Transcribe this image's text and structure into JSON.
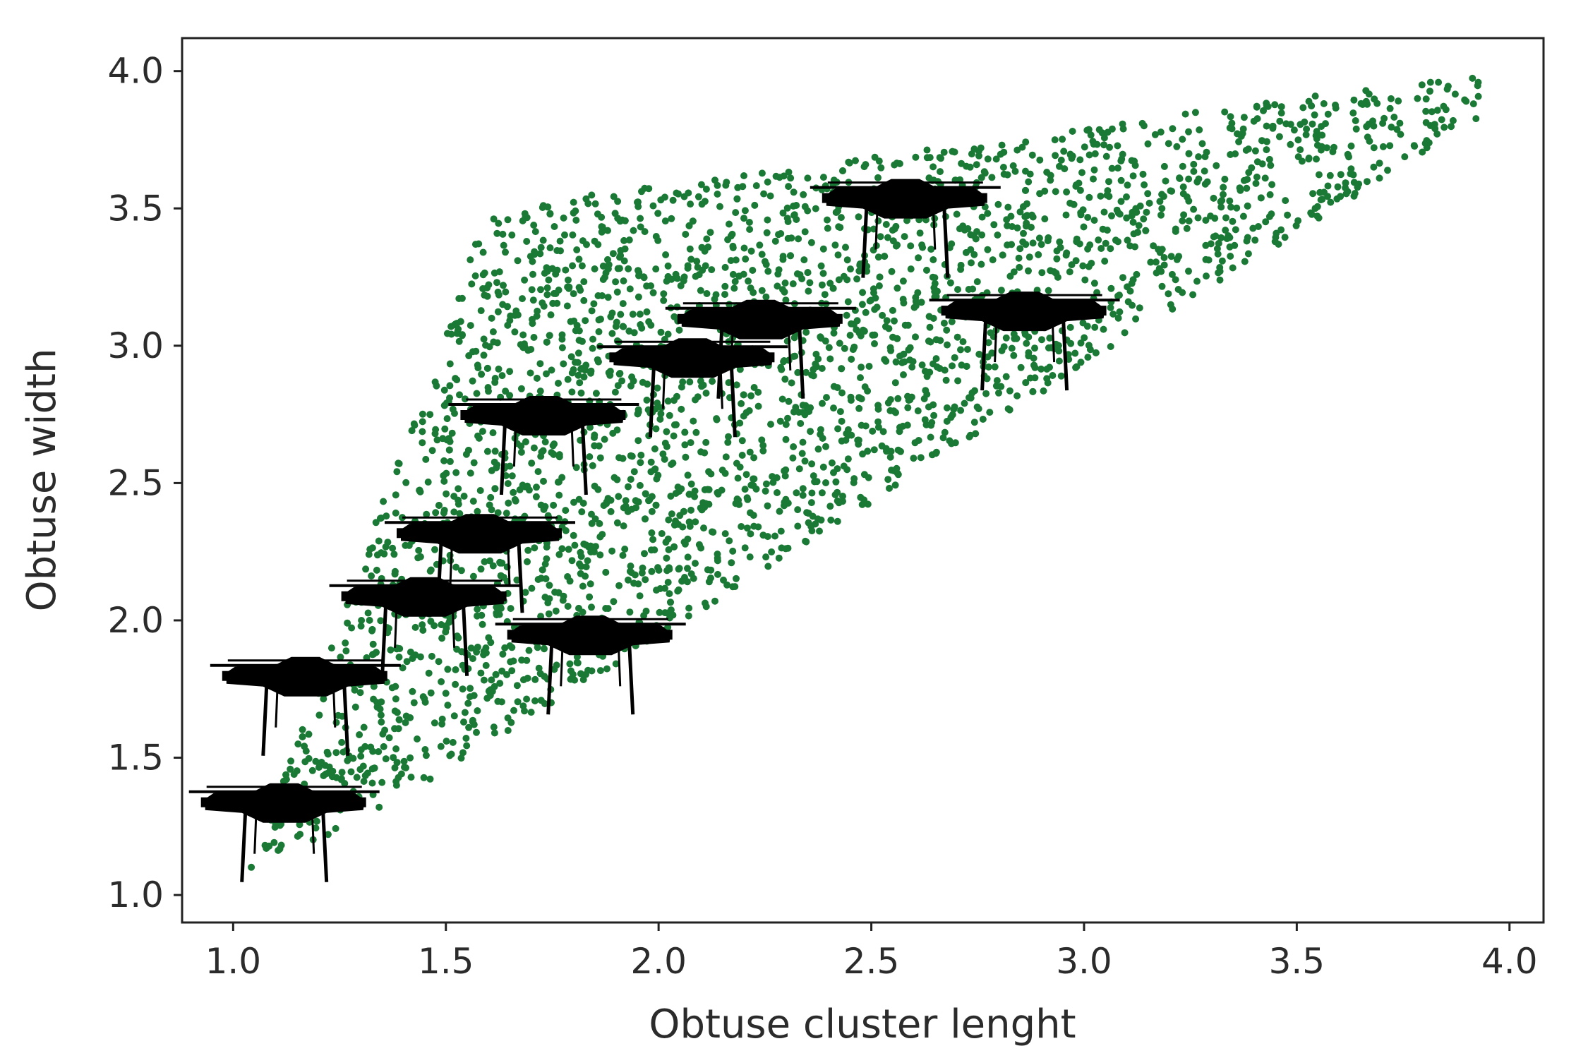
{
  "chart_data": {
    "type": "scatter",
    "title": "",
    "xlabel": "Obtuse cluster lenght",
    "ylabel": "Obtuse width",
    "xlim": [
      0.88,
      4.08
    ],
    "ylim": [
      0.9,
      4.12
    ],
    "xticks": [
      1.0,
      1.5,
      2.0,
      2.5,
      3.0,
      3.5,
      4.0
    ],
    "yticks": [
      1.0,
      1.5,
      2.0,
      2.5,
      3.0,
      3.5,
      4.0
    ],
    "xtick_labels": [
      "1.0",
      "1.5",
      "2.0",
      "2.5",
      "3.0",
      "3.5",
      "4.0"
    ],
    "ytick_labels": [
      "1.0",
      "1.5",
      "2.0",
      "2.5",
      "3.0",
      "3.5",
      "4.0"
    ],
    "grid": false,
    "point_color": "#1a7a35",
    "point_cloud": {
      "description_region": "points fill region bounded by y >= 0.75x + 0.3 for x<=1.35 then y >= 0.98x - 0.02; upper boundary rises steeply from (1.05,1.05) to (1.6,3.5) then gently to (3.92,3.98)",
      "count": 3000,
      "x_range": [
        1.03,
        3.93
      ],
      "y_range": [
        1.05,
        3.99
      ]
    },
    "drone_markers": {
      "icon": "quadcopter-drone-icon",
      "color": "#000000",
      "positions": [
        {
          "x": 1.12,
          "y": 1.33
        },
        {
          "x": 1.17,
          "y": 1.79
        },
        {
          "x": 1.45,
          "y": 2.08
        },
        {
          "x": 1.58,
          "y": 2.31
        },
        {
          "x": 1.73,
          "y": 2.74
        },
        {
          "x": 1.84,
          "y": 1.94
        },
        {
          "x": 2.08,
          "y": 2.95
        },
        {
          "x": 2.24,
          "y": 3.09
        },
        {
          "x": 2.58,
          "y": 3.53
        },
        {
          "x": 2.86,
          "y": 3.12
        }
      ]
    }
  }
}
